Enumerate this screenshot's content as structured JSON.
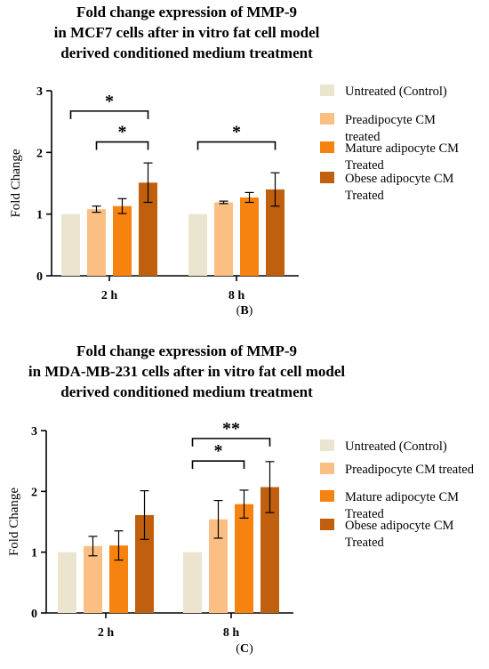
{
  "colors": {
    "untreated": "#ebe4cf",
    "preadipocyte": "#fbbf83",
    "mature": "#f6830f",
    "obese": "#c05f0d",
    "axis": "#000000"
  },
  "panels": [
    {
      "id": "B",
      "title_lines": [
        "Fold change expression of MMP-9",
        "in MCF7 cells after in vitro fat cell model",
        "derived conditioned medium treatment"
      ],
      "label_prefix": "(",
      "label_letter": "B",
      "label_suffix": ")"
    },
    {
      "id": "C",
      "title_lines": [
        "Fold change expression of MMP-9",
        "in MDA-MB-231 cells after in vitro fat cell model",
        "derived conditioned medium treatment"
      ],
      "label_prefix": "(",
      "label_letter": "C",
      "label_suffix": ")"
    }
  ],
  "chart_data": [
    {
      "type": "bar",
      "panel": "B",
      "title": "Fold change expression of MMP-9 in MCF7 cells after in vitro fat cell model derived conditioned medium treatment",
      "xlabel": "",
      "ylabel": "Fold Change",
      "ylim": [
        0,
        3
      ],
      "yticks": [
        "0",
        "1",
        "2",
        "3"
      ],
      "categories": [
        "2 h",
        "8 h"
      ],
      "legend_placement": "right",
      "series": [
        {
          "name_lines": [
            "Untreated (Control)"
          ],
          "color_key": "untreated",
          "values": [
            1.0,
            1.0
          ],
          "errors": [
            0,
            0
          ]
        },
        {
          "name_lines": [
            "Preadipocyte CM",
            "treated"
          ],
          "color_key": "preadipocyte",
          "values": [
            1.08,
            1.19
          ],
          "errors": [
            0.05,
            0.02
          ]
        },
        {
          "name_lines": [
            "Mature adipocyte CM",
            "Treated"
          ],
          "color_key": "mature",
          "values": [
            1.13,
            1.27
          ],
          "errors": [
            0.12,
            0.08
          ]
        },
        {
          "name_lines": [
            "Obese adipocyte CM",
            "Treated"
          ],
          "color_key": "obese",
          "values": [
            1.51,
            1.4
          ],
          "errors": [
            0.32,
            0.27
          ]
        }
      ],
      "significance": [
        {
          "label": "*",
          "from": [
            0,
            0
          ],
          "to": [
            0,
            3
          ],
          "level": 2.67
        },
        {
          "label": "*",
          "from": [
            0,
            1
          ],
          "to": [
            0,
            3
          ],
          "level": 2.17
        },
        {
          "label": "*",
          "from": [
            1,
            0
          ],
          "to": [
            1,
            3
          ],
          "level": 2.17
        }
      ]
    },
    {
      "type": "bar",
      "panel": "C",
      "title": "Fold change expression of MMP-9 in MDA-MB-231 cells after in vitro fat cell model derived conditioned medium treatment",
      "xlabel": "",
      "ylabel": "Fold Change",
      "ylim": [
        0,
        3
      ],
      "yticks": [
        "0",
        "1",
        "2",
        "3"
      ],
      "categories": [
        "2 h",
        "8 h"
      ],
      "legend_placement": "right",
      "series": [
        {
          "name_lines": [
            "Untreated (Control)"
          ],
          "color_key": "untreated",
          "values": [
            1.0,
            1.0
          ],
          "errors": [
            0,
            0
          ]
        },
        {
          "name_lines": [
            "Preadipocyte CM treated"
          ],
          "color_key": "preadipocyte",
          "values": [
            1.1,
            1.54
          ],
          "errors": [
            0.16,
            0.31
          ]
        },
        {
          "name_lines": [
            "Mature adipocyte CM",
            "Treated"
          ],
          "color_key": "mature",
          "values": [
            1.11,
            1.79
          ],
          "errors": [
            0.24,
            0.23
          ]
        },
        {
          "name_lines": [
            "Obese adipocyte CM",
            "Treated"
          ],
          "color_key": "obese",
          "values": [
            1.61,
            2.07
          ],
          "errors": [
            0.4,
            0.42
          ]
        }
      ],
      "significance": [
        {
          "label": "**",
          "from": [
            1,
            0
          ],
          "to": [
            1,
            3
          ],
          "level": 2.87
        },
        {
          "label": "*",
          "from": [
            1,
            0
          ],
          "to": [
            1,
            2
          ],
          "level": 2.5
        }
      ]
    }
  ]
}
